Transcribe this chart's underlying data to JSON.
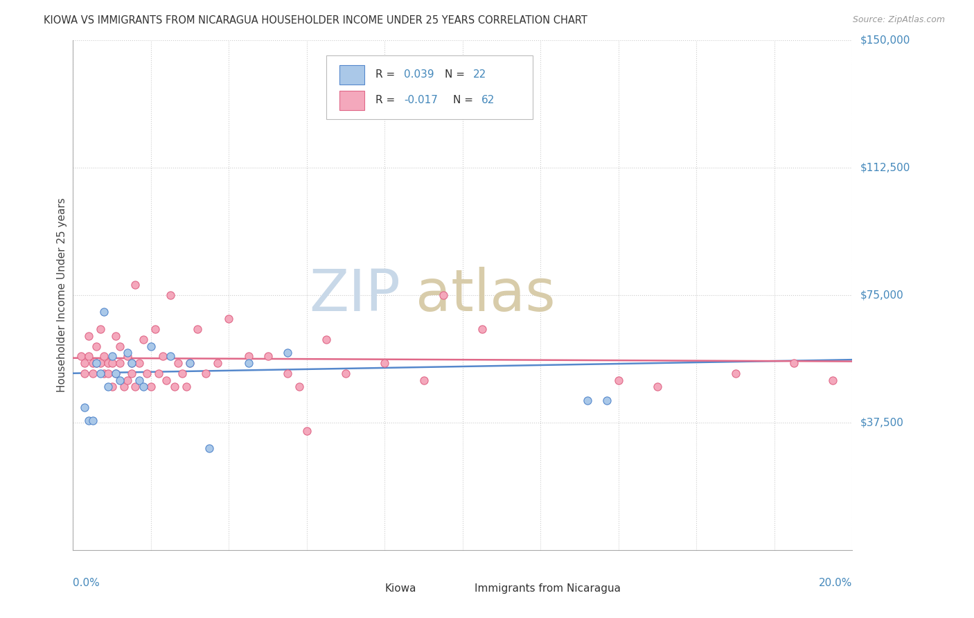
{
  "title": "KIOWA VS IMMIGRANTS FROM NICARAGUA HOUSEHOLDER INCOME UNDER 25 YEARS CORRELATION CHART",
  "source": "Source: ZipAtlas.com",
  "ylabel": "Householder Income Under 25 years",
  "xlim": [
    0.0,
    20.0
  ],
  "ylim": [
    0,
    150000
  ],
  "yticks": [
    0,
    37500,
    75000,
    112500,
    150000
  ],
  "ytick_labels": [
    "",
    "$37,500",
    "$75,000",
    "$112,500",
    "$150,000"
  ],
  "kiowa_face": "#aac8e8",
  "kiowa_edge": "#5588cc",
  "nicaragua_face": "#f4a8bc",
  "nicaragua_edge": "#e06888",
  "trend_kiowa_color": "#5588cc",
  "trend_nicaragua_color": "#e06888",
  "label_color": "#4488bb",
  "R_kiowa_text": "0.039",
  "N_kiowa_text": "22",
  "R_nicaragua_text": "-0.017",
  "N_nicaragua_text": "62",
  "kiowa_x": [
    0.3,
    0.4,
    0.5,
    0.6,
    0.7,
    0.8,
    0.9,
    1.0,
    1.1,
    1.2,
    1.4,
    1.5,
    1.7,
    1.8,
    2.0,
    2.5,
    3.0,
    3.5,
    4.5,
    5.5,
    13.2,
    13.7
  ],
  "kiowa_y": [
    42000,
    38000,
    38000,
    55000,
    52000,
    70000,
    48000,
    57000,
    52000,
    50000,
    58000,
    55000,
    50000,
    48000,
    60000,
    57000,
    55000,
    30000,
    55000,
    58000,
    44000,
    44000
  ],
  "nicaragua_x": [
    0.2,
    0.3,
    0.3,
    0.4,
    0.4,
    0.5,
    0.5,
    0.6,
    0.6,
    0.7,
    0.7,
    0.8,
    0.8,
    0.9,
    0.9,
    1.0,
    1.0,
    1.1,
    1.1,
    1.2,
    1.2,
    1.3,
    1.4,
    1.4,
    1.5,
    1.5,
    1.6,
    1.6,
    1.7,
    1.8,
    1.9,
    2.0,
    2.1,
    2.2,
    2.3,
    2.4,
    2.5,
    2.6,
    2.7,
    2.8,
    2.9,
    3.0,
    3.2,
    3.4,
    3.7,
    4.0,
    4.5,
    5.0,
    5.5,
    5.8,
    6.0,
    6.5,
    7.0,
    8.0,
    9.0,
    9.5,
    10.5,
    14.0,
    15.0,
    17.0,
    18.5,
    19.5
  ],
  "nicaragua_y": [
    57000,
    55000,
    52000,
    63000,
    57000,
    55000,
    52000,
    60000,
    55000,
    65000,
    55000,
    52000,
    57000,
    55000,
    52000,
    48000,
    55000,
    63000,
    52000,
    55000,
    60000,
    48000,
    57000,
    50000,
    55000,
    52000,
    78000,
    48000,
    55000,
    62000,
    52000,
    48000,
    65000,
    52000,
    57000,
    50000,
    75000,
    48000,
    55000,
    52000,
    48000,
    55000,
    65000,
    52000,
    55000,
    68000,
    57000,
    57000,
    52000,
    48000,
    35000,
    62000,
    52000,
    55000,
    50000,
    75000,
    65000,
    50000,
    48000,
    52000,
    55000,
    50000
  ]
}
